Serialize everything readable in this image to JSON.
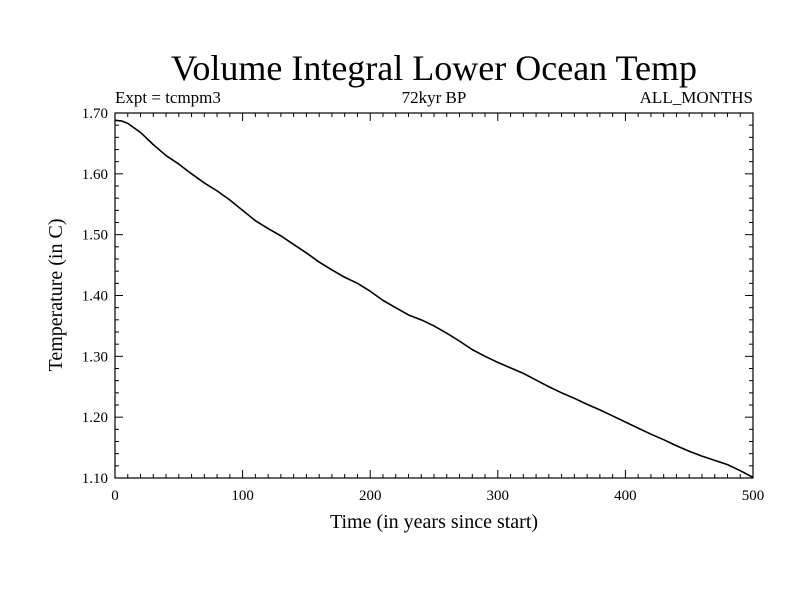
{
  "chart_data": {
    "type": "line",
    "title": "Volume Integral Lower Ocean Temp",
    "subtitle_left": "Expt = tcmpm3",
    "subtitle_center": "72kyr BP",
    "subtitle_right": "ALL_MONTHS",
    "xlabel": "Time (in years since start)",
    "ylabel": "Temperature (in C)",
    "xlim": [
      0,
      500
    ],
    "ylim": [
      1.1,
      1.7
    ],
    "xticks": [
      0,
      100,
      200,
      300,
      400,
      500
    ],
    "xtick_labels": [
      "0",
      "100",
      "200",
      "300",
      "400",
      "500"
    ],
    "yticks": [
      1.1,
      1.2,
      1.3,
      1.4,
      1.5,
      1.6,
      1.7
    ],
    "ytick_labels": [
      "1.10",
      "1.20",
      "1.30",
      "1.40",
      "1.50",
      "1.60",
      "1.70"
    ],
    "grid": false,
    "line_color": "#000000",
    "series": [
      {
        "name": "Lower Ocean Temp",
        "x": [
          0,
          5,
          10,
          20,
          30,
          40,
          50,
          60,
          70,
          80,
          90,
          100,
          110,
          120,
          130,
          140,
          150,
          160,
          170,
          180,
          190,
          200,
          210,
          220,
          230,
          240,
          250,
          260,
          270,
          280,
          290,
          300,
          310,
          320,
          330,
          340,
          350,
          360,
          370,
          380,
          390,
          400,
          410,
          420,
          430,
          440,
          450,
          460,
          470,
          480,
          490,
          500
        ],
        "y": [
          1.688,
          1.687,
          1.683,
          1.668,
          1.648,
          1.63,
          1.616,
          1.6,
          1.585,
          1.572,
          1.557,
          1.54,
          1.523,
          1.51,
          1.498,
          1.484,
          1.47,
          1.455,
          1.442,
          1.43,
          1.42,
          1.407,
          1.392,
          1.38,
          1.368,
          1.36,
          1.35,
          1.338,
          1.325,
          1.311,
          1.3,
          1.29,
          1.281,
          1.272,
          1.261,
          1.25,
          1.24,
          1.231,
          1.221,
          1.212,
          1.202,
          1.192,
          1.182,
          1.172,
          1.163,
          1.153,
          1.144,
          1.136,
          1.129,
          1.122,
          1.112,
          1.101
        ]
      }
    ]
  }
}
